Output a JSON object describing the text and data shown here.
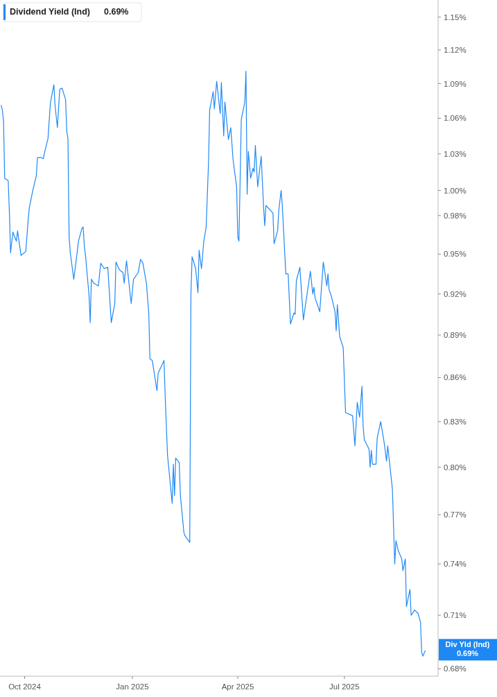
{
  "chart_data": {
    "type": "line",
    "log": true,
    "legend": "top left",
    "marker": "none",
    "line_style": "solid",
    "grid": false,
    "x": [
      "2024-09-11",
      "2024-09-12",
      "2024-09-13",
      "2024-09-14",
      "2024-09-17",
      "2024-09-18",
      "2024-09-19",
      "2024-09-21",
      "2024-09-24",
      "2024-09-25",
      "2024-09-28",
      "2024-10-02",
      "2024-10-04",
      "2024-10-05",
      "2024-10-08",
      "2024-10-11",
      "2024-10-12",
      "2024-10-15",
      "2024-10-17",
      "2024-10-18",
      "2024-10-21",
      "2024-10-23",
      "2024-10-26",
      "2024-10-27",
      "2024-10-29",
      "2024-10-31",
      "2024-11-02",
      "2024-11-05",
      "2024-11-06",
      "2024-11-07",
      "2024-11-08",
      "2024-11-09",
      "2024-11-12",
      "2024-11-14",
      "2024-11-16",
      "2024-11-19",
      "2024-11-20",
      "2024-11-21",
      "2024-11-22",
      "2024-11-25",
      "2024-11-26",
      "2024-11-27",
      "2024-11-29",
      "2024-12-03",
      "2024-12-05",
      "2024-12-08",
      "2024-12-11",
      "2024-12-14",
      "2024-12-17",
      "2024-12-18",
      "2024-12-21",
      "2024-12-24",
      "2024-12-25",
      "2024-12-27",
      "2024-12-31",
      "2025-01-02",
      "2025-01-06",
      "2025-01-08",
      "2025-01-10",
      "2025-01-13",
      "2025-01-15",
      "2025-01-16",
      "2025-01-18",
      "2025-01-22",
      "2025-01-23",
      "2025-01-28",
      "2025-01-29",
      "2025-01-31",
      "2025-02-04",
      "2025-02-05",
      "2025-02-06",
      "2025-02-07",
      "2025-02-10",
      "2025-02-11",
      "2025-02-14",
      "2025-02-15",
      "2025-02-19",
      "2025-02-20",
      "2025-02-21",
      "2025-02-24",
      "2025-02-26",
      "2025-02-27",
      "2025-03-01",
      "2025-03-03",
      "2025-03-05",
      "2025-03-07",
      "2025-03-08",
      "2025-03-11",
      "2025-03-12",
      "2025-03-14",
      "2025-03-17",
      "2025-03-18",
      "2025-03-20",
      "2025-03-21",
      "2025-03-24",
      "2025-03-26",
      "2025-03-28",
      "2025-03-31",
      "2025-04-01",
      "2025-04-02",
      "2025-04-04",
      "2025-04-07",
      "2025-04-08",
      "2025-04-09",
      "2025-04-10",
      "2025-04-12",
      "2025-04-14",
      "2025-04-15",
      "2025-04-16",
      "2025-04-18",
      "2025-04-21",
      "2025-04-23",
      "2025-04-24",
      "2025-04-25",
      "2025-05-01",
      "2025-05-02",
      "2025-05-05",
      "2025-05-06",
      "2025-05-08",
      "2025-05-09",
      "2025-05-12",
      "2025-05-14",
      "2025-05-16",
      "2025-05-19",
      "2025-05-20",
      "2025-05-21",
      "2025-05-24",
      "2025-05-27",
      "2025-05-30",
      "2025-06-02",
      "2025-06-04",
      "2025-06-05",
      "2025-06-06",
      "2025-06-10",
      "2025-06-13",
      "2025-06-16",
      "2025-06-17",
      "2025-06-18",
      "2025-06-20",
      "2025-06-23",
      "2025-06-24",
      "2025-06-25",
      "2025-06-27",
      "2025-06-30",
      "2025-07-02",
      "2025-07-08",
      "2025-07-10",
      "2025-07-12",
      "2025-07-14",
      "2025-07-16",
      "2025-07-17",
      "2025-07-18",
      "2025-07-22",
      "2025-07-23",
      "2025-07-24",
      "2025-07-25",
      "2025-07-28",
      "2025-07-29",
      "2025-08-01",
      "2025-08-04",
      "2025-08-06",
      "2025-08-07",
      "2025-08-09",
      "2025-08-11",
      "2025-08-13",
      "2025-08-14",
      "2025-08-16",
      "2025-08-19",
      "2025-08-20",
      "2025-08-22",
      "2025-08-23",
      "2025-08-26",
      "2025-08-27",
      "2025-08-30",
      "2025-09-02",
      "2025-09-04",
      "2025-09-05",
      "2025-09-06",
      "2025-09-08"
    ],
    "series": [
      {
        "name": "Dividend Yield (Ind)",
        "color": "#1e88f5",
        "values": [
          1.071,
          1.067,
          1.058,
          1.01,
          1.008,
          0.983,
          0.951,
          0.967,
          0.96,
          0.968,
          0.949,
          0.952,
          0.976,
          0.986,
          1.0,
          1.012,
          1.027,
          1.027,
          1.026,
          1.031,
          1.043,
          1.073,
          1.089,
          1.071,
          1.052,
          1.085,
          1.086,
          1.076,
          1.049,
          1.043,
          0.963,
          0.951,
          0.931,
          0.945,
          0.96,
          0.97,
          0.971,
          0.956,
          0.949,
          0.919,
          0.899,
          0.931,
          0.928,
          0.926,
          0.943,
          0.939,
          0.94,
          0.899,
          0.913,
          0.944,
          0.938,
          0.936,
          0.928,
          0.945,
          0.913,
          0.931,
          0.936,
          0.946,
          0.943,
          0.928,
          0.906,
          0.873,
          0.872,
          0.851,
          0.863,
          0.872,
          0.848,
          0.808,
          0.777,
          0.802,
          0.782,
          0.806,
          0.803,
          0.782,
          0.759,
          0.757,
          0.753,
          0.92,
          0.948,
          0.939,
          0.921,
          0.953,
          0.939,
          0.96,
          0.971,
          1.022,
          1.067,
          1.083,
          1.068,
          1.092,
          1.064,
          1.091,
          1.045,
          1.074,
          1.042,
          1.052,
          1.025,
          1.003,
          0.963,
          0.96,
          1.059,
          1.074,
          1.101,
          0.997,
          1.032,
          1.01,
          1.018,
          1.015,
          1.037,
          1.003,
          1.028,
          0.987,
          0.972,
          0.988,
          0.982,
          0.958,
          0.968,
          0.984,
          1.0,
          0.988,
          0.935,
          0.935,
          0.898,
          0.906,
          0.905,
          0.93,
          0.94,
          0.901,
          0.919,
          0.937,
          0.92,
          0.925,
          0.917,
          0.907,
          0.944,
          0.926,
          0.935,
          0.923,
          0.918,
          0.907,
          0.893,
          0.912,
          0.889,
          0.881,
          0.836,
          0.834,
          0.814,
          0.843,
          0.833,
          0.854,
          0.827,
          0.818,
          0.812,
          0.8,
          0.811,
          0.802,
          0.802,
          0.819,
          0.83,
          0.816,
          0.804,
          0.814,
          0.8,
          0.786,
          0.74,
          0.754,
          0.748,
          0.743,
          0.736,
          0.743,
          0.715,
          0.725,
          0.71,
          0.713,
          0.711,
          0.706,
          0.689,
          0.687,
          0.69
        ]
      }
    ],
    "xlim": [
      "2024-09-10",
      "2025-09-19"
    ],
    "xticks": [
      {
        "value": "2024-10-01",
        "label": "Oct 2024"
      },
      {
        "value": "2025-01-01",
        "label": "Jan 2025"
      },
      {
        "value": "2025-04-01",
        "label": "Apr 2025"
      },
      {
        "value": "2025-07-01",
        "label": "Jul 2025"
      }
    ],
    "ylim": [
      0.676,
      1.166
    ],
    "yticks": [
      {
        "value": 1.15,
        "label": "1.15%"
      },
      {
        "value": 1.12,
        "label": "1.12%"
      },
      {
        "value": 1.09,
        "label": "1.09%"
      },
      {
        "value": 1.06,
        "label": "1.06%"
      },
      {
        "value": 1.03,
        "label": "1.03%"
      },
      {
        "value": 1.0,
        "label": "1.00%"
      },
      {
        "value": 0.98,
        "label": "0.98%"
      },
      {
        "value": 0.95,
        "label": "0.95%"
      },
      {
        "value": 0.92,
        "label": "0.92%"
      },
      {
        "value": 0.89,
        "label": "0.89%"
      },
      {
        "value": 0.86,
        "label": "0.86%"
      },
      {
        "value": 0.83,
        "label": "0.83%"
      },
      {
        "value": 0.8,
        "label": "0.80%"
      },
      {
        "value": 0.77,
        "label": "0.77%"
      },
      {
        "value": 0.74,
        "label": "0.74%"
      },
      {
        "value": 0.71,
        "label": "0.71%"
      },
      {
        "value": 0.68,
        "label": "0.68%"
      }
    ],
    "annotations": [
      "0.69%",
      "Div Yld (Ind)",
      "0.69%"
    ]
  }
}
